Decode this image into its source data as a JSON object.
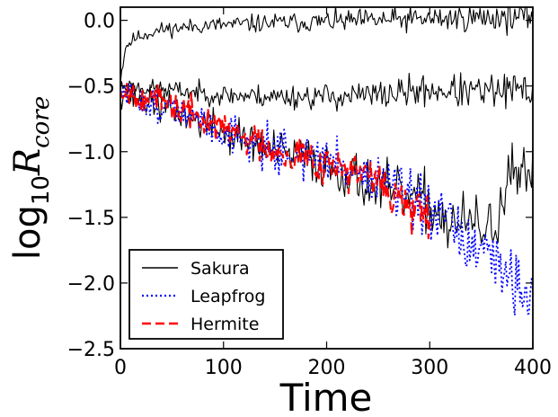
{
  "chart_data": {
    "type": "line",
    "xlabel": "Time",
    "ylabel": {
      "base": "log",
      "sub": "10",
      "var": "R",
      "var_sub": "core"
    },
    "xlim": [
      0,
      400
    ],
    "ylim": [
      -2.5,
      0.1
    ],
    "xticks": [
      0,
      100,
      200,
      300,
      400
    ],
    "xtick_labels": [
      "0",
      "100",
      "200",
      "300",
      "400"
    ],
    "yticks": [
      0.0,
      -0.5,
      -1.0,
      -1.5,
      -2.0,
      -2.5
    ],
    "ytick_labels": [
      "0.0",
      "−0.5",
      "−1.0",
      "−1.5",
      "−2.0",
      "−2.5"
    ],
    "grid": false,
    "legend_position": "lower-left",
    "series": [
      {
        "name": "Sakura",
        "style": "solid",
        "color": "#000000",
        "runs": [
          {
            "noise": 0.04,
            "seed": 11,
            "x": [
              0,
              5,
              15,
              40,
              80,
              150,
              250,
              350,
              400
            ],
            "y": [
              -0.45,
              -0.2,
              -0.13,
              -0.07,
              -0.04,
              -0.02,
              0.0,
              0.02,
              0.03
            ]
          },
          {
            "noise": 0.05,
            "seed": 23,
            "x": [
              0,
              50,
              100,
              150,
              200,
              250,
              300,
              350,
              400
            ],
            "y": [
              -0.5,
              -0.53,
              -0.57,
              -0.58,
              -0.58,
              -0.57,
              -0.53,
              -0.55,
              -0.53
            ]
          },
          {
            "noise": 0.09,
            "seed": 37,
            "x": [
              0,
              50,
              100,
              150,
              200,
              250,
              280,
              300,
              320,
              340,
              360,
              380,
              400
            ],
            "y": [
              -0.55,
              -0.68,
              -0.85,
              -1.0,
              -1.1,
              -1.28,
              -1.35,
              -1.4,
              -1.55,
              -1.55,
              -1.6,
              -1.2,
              -1.25
            ]
          }
        ]
      },
      {
        "name": "Leapfrog",
        "style": "dotted",
        "color": "#0000ff",
        "runs": [
          {
            "noise": 0.09,
            "seed": 51,
            "x": [
              0,
              50,
              100,
              150,
              200,
              250,
              300,
              320,
              340,
              360,
              380,
              400
            ],
            "y": [
              -0.55,
              -0.68,
              -0.85,
              -0.98,
              -1.07,
              -1.2,
              -1.48,
              -1.55,
              -1.75,
              -1.85,
              -1.95,
              -2.05
            ]
          }
        ]
      },
      {
        "name": "Hermite",
        "style": "dashed",
        "color": "#ff0000",
        "runs": [
          {
            "noise": 0.08,
            "seed": 67,
            "x": [
              0,
              50,
              100,
              150,
              200,
              250,
              270,
              290,
              300
            ],
            "y": [
              -0.52,
              -0.65,
              -0.82,
              -0.98,
              -1.08,
              -1.23,
              -1.35,
              -1.5,
              -1.55
            ]
          }
        ]
      }
    ],
    "colors": {
      "axes": "#000000",
      "background": "#ffffff"
    }
  }
}
